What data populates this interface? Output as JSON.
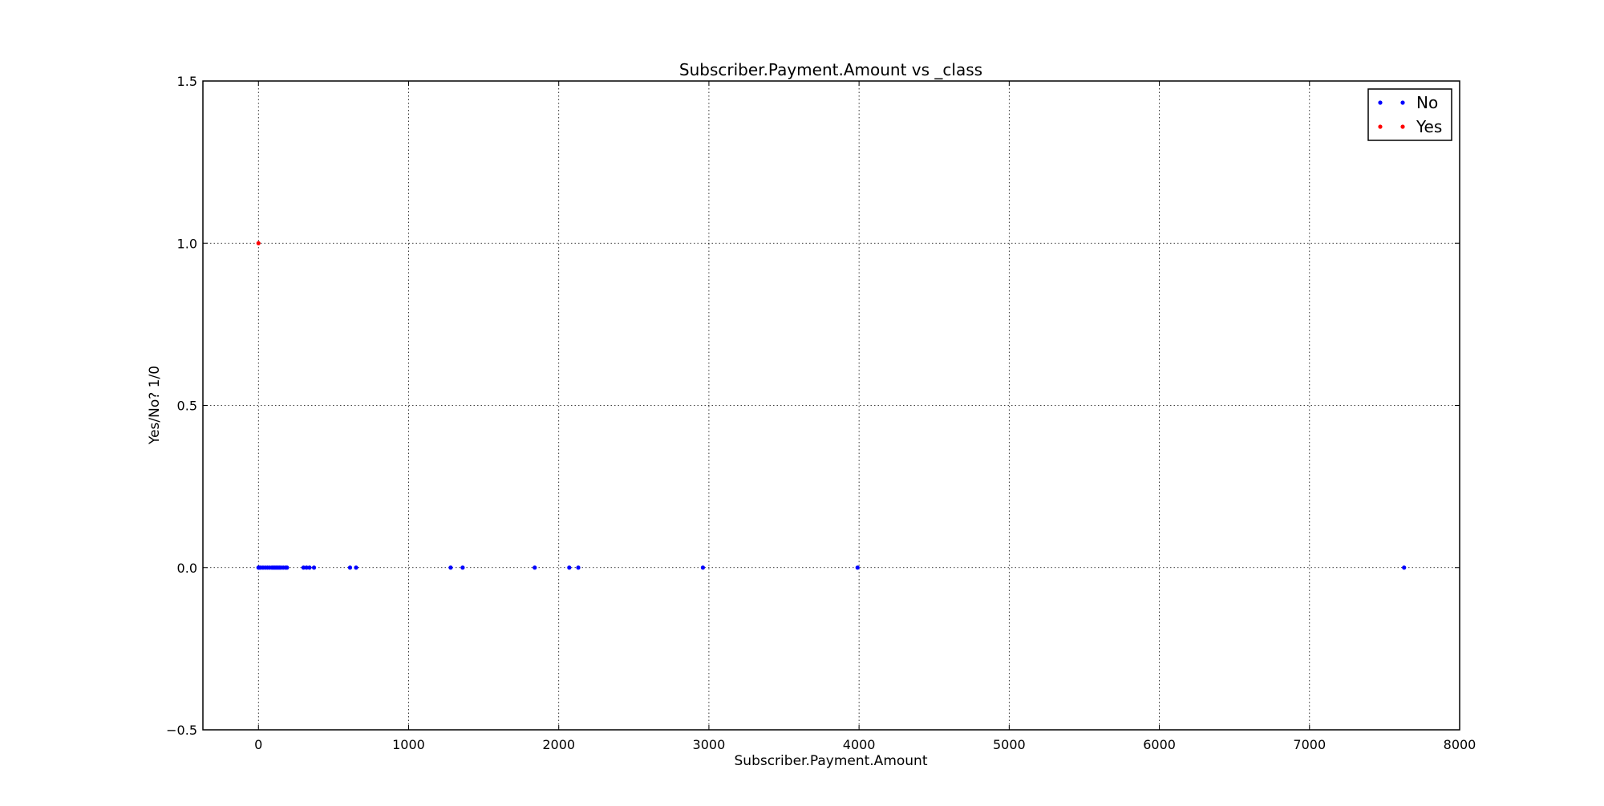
{
  "chart_data": {
    "type": "scatter",
    "title": "Subscriber.Payment.Amount vs _class",
    "xlabel": "Subscriber.Payment.Amount",
    "ylabel": "Yes/No? 1/0",
    "xlim": [
      -370,
      8000
    ],
    "ylim": [
      -0.5,
      1.5
    ],
    "xticks": [
      0,
      1000,
      2000,
      3000,
      4000,
      5000,
      6000,
      7000,
      8000
    ],
    "xtick_labels": [
      "0",
      "1000",
      "2000",
      "3000",
      "4000",
      "5000",
      "6000",
      "7000",
      "8000"
    ],
    "yticks": [
      -0.5,
      0.0,
      0.5,
      1.0,
      1.5
    ],
    "ytick_labels": [
      "−0.5",
      "0.0",
      "0.5",
      "1.0",
      "1.5"
    ],
    "grid": true,
    "legend_position": "top-right",
    "series": [
      {
        "name": "No",
        "color": "#0000ff",
        "points": [
          [
            0,
            0
          ],
          [
            5,
            0
          ],
          [
            15,
            0
          ],
          [
            30,
            0
          ],
          [
            45,
            0
          ],
          [
            60,
            0
          ],
          [
            75,
            0
          ],
          [
            90,
            0
          ],
          [
            100,
            0
          ],
          [
            110,
            0
          ],
          [
            120,
            0
          ],
          [
            130,
            0
          ],
          [
            140,
            0
          ],
          [
            150,
            0
          ],
          [
            165,
            0
          ],
          [
            180,
            0
          ],
          [
            190,
            0
          ],
          [
            300,
            0
          ],
          [
            320,
            0
          ],
          [
            340,
            0
          ],
          [
            370,
            0
          ],
          [
            610,
            0
          ],
          [
            650,
            0
          ],
          [
            1280,
            0
          ],
          [
            1360,
            0
          ],
          [
            1840,
            0
          ],
          [
            2070,
            0
          ],
          [
            2130,
            0
          ],
          [
            2960,
            0
          ],
          [
            3990,
            0
          ],
          [
            7630,
            0
          ]
        ]
      },
      {
        "name": "Yes",
        "color": "#ff0000",
        "points": [
          [
            0,
            1
          ]
        ]
      }
    ]
  }
}
